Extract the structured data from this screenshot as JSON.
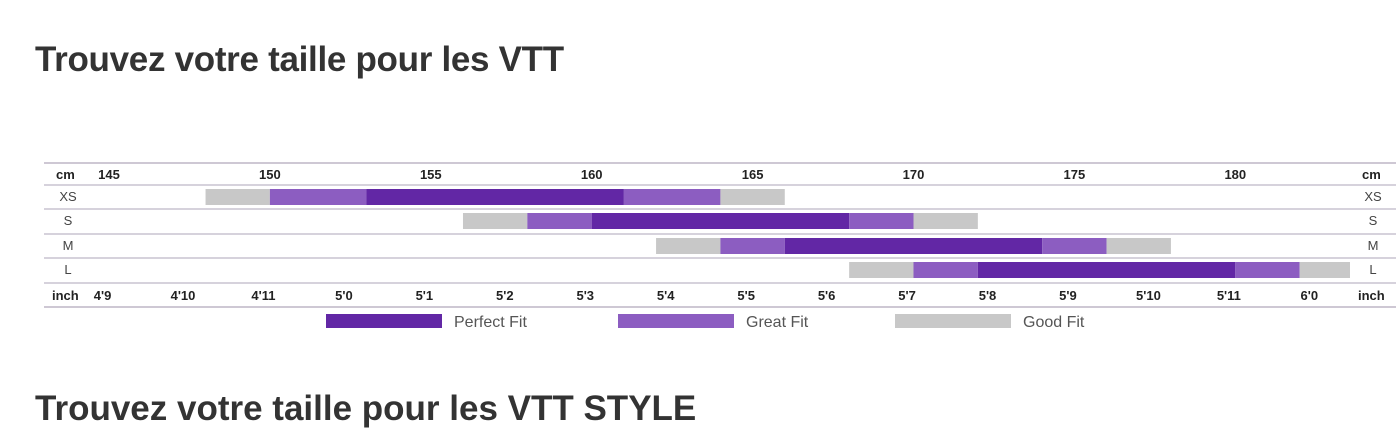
{
  "page": {
    "title": "Trouvez votre taille pour les VTT",
    "next_heading": "Trouvez votre taille pour les VTT STYLE"
  },
  "colors": {
    "perfect": "#6227a5",
    "great": "#8c5dc1",
    "good": "#c8c8c8",
    "separator": "#bdb6c6"
  },
  "chart_data": {
    "type": "bar",
    "orientation": "horizontal-range",
    "units": {
      "top": "cm",
      "bottom": "inch"
    },
    "xlim": [
      143.5,
      182.5
    ],
    "cm_ticks": [
      {
        "label": "145",
        "value": 145
      },
      {
        "label": "150",
        "value": 150
      },
      {
        "label": "155",
        "value": 155
      },
      {
        "label": "160",
        "value": 160
      },
      {
        "label": "165",
        "value": 165
      },
      {
        "label": "170",
        "value": 170
      },
      {
        "label": "175",
        "value": 175
      },
      {
        "label": "180",
        "value": 180
      }
    ],
    "inch_ticks": [
      {
        "label": "4'9",
        "value": 144.8
      },
      {
        "label": "4'10",
        "value": 147.3
      },
      {
        "label": "4'11",
        "value": 149.8
      },
      {
        "label": "5'0",
        "value": 152.3
      },
      {
        "label": "5'1",
        "value": 154.8
      },
      {
        "label": "5'2",
        "value": 157.3
      },
      {
        "label": "5'3",
        "value": 159.8
      },
      {
        "label": "5'4",
        "value": 162.3
      },
      {
        "label": "5'5",
        "value": 164.8
      },
      {
        "label": "5'6",
        "value": 167.3
      },
      {
        "label": "5'7",
        "value": 169.8
      },
      {
        "label": "5'8",
        "value": 172.3
      },
      {
        "label": "5'9",
        "value": 174.8
      },
      {
        "label": "5'10",
        "value": 177.3
      },
      {
        "label": "5'11",
        "value": 179.8
      },
      {
        "label": "6'0",
        "value": 182.3
      }
    ],
    "sizes": [
      {
        "label": "XS",
        "segments": [
          {
            "fit": "good",
            "start": 148.0,
            "end": 150.0
          },
          {
            "fit": "great",
            "start": 150.0,
            "end": 153.0
          },
          {
            "fit": "perfect",
            "start": 153.0,
            "end": 161.0
          },
          {
            "fit": "great",
            "start": 161.0,
            "end": 164.0
          },
          {
            "fit": "good",
            "start": 164.0,
            "end": 166.0
          }
        ]
      },
      {
        "label": "S",
        "segments": [
          {
            "fit": "good",
            "start": 156.0,
            "end": 158.0
          },
          {
            "fit": "great",
            "start": 158.0,
            "end": 160.0
          },
          {
            "fit": "perfect",
            "start": 160.0,
            "end": 168.0
          },
          {
            "fit": "great",
            "start": 168.0,
            "end": 170.0
          },
          {
            "fit": "good",
            "start": 170.0,
            "end": 172.0
          }
        ]
      },
      {
        "label": "M",
        "segments": [
          {
            "fit": "good",
            "start": 162.0,
            "end": 164.0
          },
          {
            "fit": "great",
            "start": 164.0,
            "end": 166.0
          },
          {
            "fit": "perfect",
            "start": 166.0,
            "end": 174.0
          },
          {
            "fit": "great",
            "start": 174.0,
            "end": 176.0
          },
          {
            "fit": "good",
            "start": 176.0,
            "end": 178.0
          }
        ]
      },
      {
        "label": "L",
        "segments": [
          {
            "fit": "good",
            "start": 168.0,
            "end": 170.0
          },
          {
            "fit": "great",
            "start": 170.0,
            "end": 172.0
          },
          {
            "fit": "perfect",
            "start": 172.0,
            "end": 180.0
          },
          {
            "fit": "great",
            "start": 180.0,
            "end": 182.0
          },
          {
            "fit": "good",
            "start": 182.0,
            "end": 184.0
          }
        ]
      }
    ],
    "legend": [
      {
        "key": "perfect",
        "label": "Perfect Fit"
      },
      {
        "key": "great",
        "label": "Great Fit"
      },
      {
        "key": "good",
        "label": "Good Fit"
      }
    ],
    "legend_position": "bottom"
  }
}
